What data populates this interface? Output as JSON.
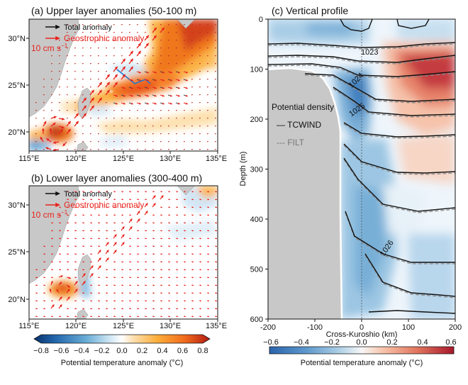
{
  "figure": {
    "panels": [
      {
        "id": "a",
        "title": "(a) Upper layer anomalies (50-100 m)",
        "legend_total": "Total anomaly",
        "legend_geo": "Geostrophic anomaly",
        "scale_label": "10 cm s",
        "scale_sup": "−1",
        "lon_ticks": [
          "115°E",
          "120°E",
          "125°E",
          "130°E",
          "135°E"
        ],
        "lat_ticks": [
          "30°N",
          "25°N",
          "20°N"
        ]
      },
      {
        "id": "b",
        "title": "(b) Lower layer anomalies (300-400 m)",
        "legend_total": "Total anomaly",
        "legend_geo": "Geostrophic anomaly",
        "scale_label": "10 cm s",
        "scale_sup": "−1",
        "lon_ticks": [
          "115°E",
          "120°E",
          "125°E",
          "130°E",
          "135°E"
        ],
        "lat_ticks": [
          "30°N",
          "25°N",
          "20°N"
        ]
      },
      {
        "id": "c",
        "title": "(c) Vertical profile",
        "legend_title": "Potential density",
        "legend_solid": "— TCWIND",
        "legend_dashed": "--- FILT"
      }
    ],
    "colorbars": [
      {
        "label": "Potential temperature anomaly (°C)",
        "ticks": [
          "−0.8",
          "−0.6",
          "−0.4",
          "−0.2",
          "0.0",
          "0.2",
          "0.4",
          "0.6",
          "0.8"
        ]
      },
      {
        "label": "Potential temperature anomaly (°C)",
        "ticks": [
          "−0.6",
          "−0.4",
          "−0.2",
          "0.0",
          "0.2",
          "0.4",
          "0.6"
        ]
      }
    ],
    "colors": {
      "total_arrow": "#000000",
      "geo_arrow": "#e8231d",
      "land": "#c8c8c8",
      "cmap_neg": "#2a64ad",
      "cmap_pos": "#b2182b"
    }
  },
  "chart_data": [
    {
      "type": "heatmap",
      "panel": "a",
      "title": "(a) Upper layer anomalies (50-100 m)",
      "xlim": [
        115,
        135
      ],
      "ylim": [
        18,
        32
      ],
      "xticks": [
        "115°E",
        "120°E",
        "125°E",
        "130°E",
        "135°E"
      ],
      "yticks": [
        "30°N",
        "25°N",
        "20°N"
      ],
      "colorbar_range": [
        -0.8,
        0.8
      ],
      "grid": false
    },
    {
      "type": "heatmap",
      "panel": "b",
      "title": "(b) Lower layer anomalies (300-400 m)",
      "xlim": [
        115,
        135
      ],
      "ylim": [
        18,
        32
      ],
      "xticks": [
        "115°E",
        "120°E",
        "125°E",
        "130°E",
        "135°E"
      ],
      "yticks": [
        "30°N",
        "25°N",
        "20°N"
      ],
      "colorbar_range": [
        -0.8,
        0.8
      ],
      "grid": false
    },
    {
      "type": "heatmap",
      "panel": "c",
      "title": "(c) Vertical profile",
      "xlabel": "Cross-Kuroshio (km)",
      "ylabel": "Depth (m)",
      "xlim": [
        -200,
        200
      ],
      "ylim": [
        600,
        0
      ],
      "xticks": [
        -200,
        -100,
        0,
        100,
        200
      ],
      "yticks": [
        0,
        100,
        200,
        300,
        400,
        500,
        600
      ],
      "colorbar_range": [
        -0.6,
        0.6
      ],
      "contour_labels": [
        "1023",
        "1024",
        "1025",
        "1026"
      ],
      "legend_placement": "left"
    }
  ]
}
